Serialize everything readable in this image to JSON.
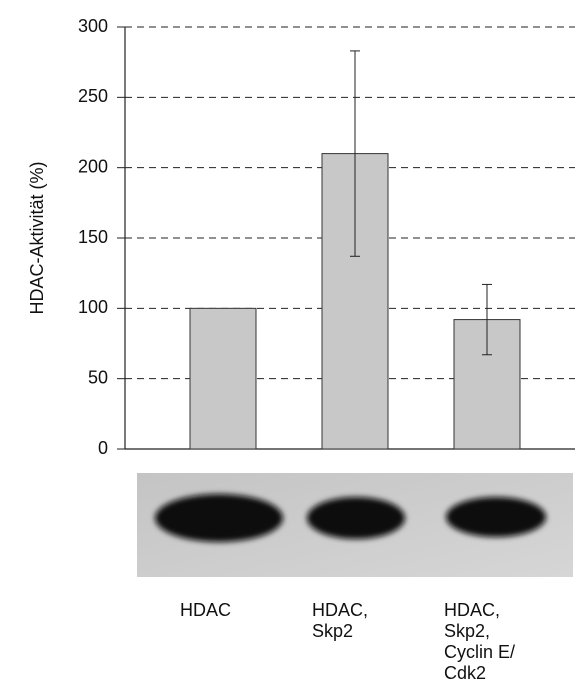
{
  "chart_data": {
    "type": "bar",
    "y_label": "HDAC-Aktivität (%)",
    "categories": [
      [
        "HDAC"
      ],
      [
        "HDAC,",
        "Skp2"
      ],
      [
        "HDAC,",
        "Skp2,",
        "Cyclin E/",
        "Cdk2"
      ]
    ],
    "values": [
      100,
      210,
      92
    ],
    "errors": [
      null,
      73,
      25
    ],
    "color": "#c8c8c8",
    "ylim": [
      0,
      300
    ],
    "yticks": [
      0,
      50,
      100,
      150,
      200,
      250,
      300
    ],
    "grid": true
  }
}
